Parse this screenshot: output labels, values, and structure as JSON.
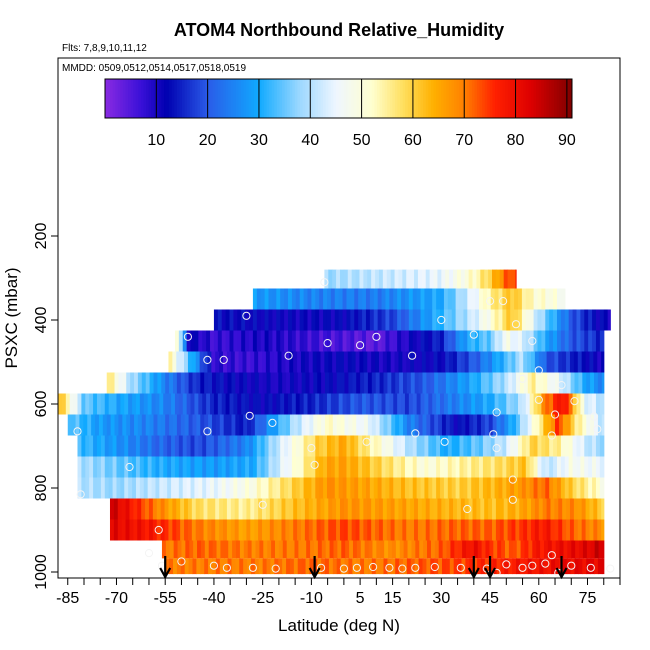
{
  "chart_data": {
    "type": "heatmap",
    "title": "ATOM4 Northbound Relative_Humidity",
    "flights_label": "Flts: 7,8,9,10,11,12",
    "dates_label": "MMDD: 0509,0512,0514,0517,0518,0519",
    "xlabel": "Latitude (deg N)",
    "ylabel": "PSXC (mbar)",
    "xlim": [
      -88,
      85
    ],
    "ylim": [
      1010,
      60
    ],
    "x_ticks_all": [
      -85,
      -80,
      -75,
      -70,
      -65,
      -60,
      -55,
      -50,
      -45,
      -40,
      -35,
      -30,
      -25,
      -20,
      -15,
      -10,
      -5,
      0,
      5,
      10,
      15,
      20,
      25,
      30,
      35,
      40,
      45,
      50,
      55,
      60,
      65,
      70,
      75,
      80,
      85
    ],
    "x_tick_labels": [
      "-85",
      "-70",
      "-55",
      "-40",
      "-25",
      "-10",
      "5",
      "15",
      "30",
      "45",
      "60",
      "75"
    ],
    "x_tick_label_values": [
      -85,
      -70,
      -55,
      -40,
      -25,
      -10,
      5,
      15,
      30,
      45,
      60,
      75
    ],
    "y_tick_labels": [
      "200",
      "400",
      "600",
      "800",
      "1000"
    ],
    "y_tick_values": [
      200,
      400,
      600,
      800,
      1000
    ],
    "colorbar": {
      "min": 0,
      "max": 91,
      "tick_labels": [
        "10",
        "20",
        "30",
        "40",
        "50",
        "60",
        "70",
        "80",
        "90"
      ],
      "tick_values": [
        10,
        20,
        30,
        40,
        50,
        60,
        70,
        80,
        90
      ],
      "stops": [
        {
          "v": 0,
          "c": "#8a2be2"
        },
        {
          "v": 7,
          "c": "#3a10d8"
        },
        {
          "v": 12,
          "c": "#0000b0"
        },
        {
          "v": 20,
          "c": "#2a5be8"
        },
        {
          "v": 30,
          "c": "#10aaff"
        },
        {
          "v": 38,
          "c": "#9dd8ff"
        },
        {
          "v": 45,
          "c": "#eef6ff"
        },
        {
          "v": 52,
          "c": "#ffffd0"
        },
        {
          "v": 58,
          "c": "#ffe060"
        },
        {
          "v": 64,
          "c": "#ffb000"
        },
        {
          "v": 70,
          "c": "#ff8000"
        },
        {
          "v": 76,
          "c": "#ff2000"
        },
        {
          "v": 83,
          "c": "#dd0000"
        },
        {
          "v": 91,
          "c": "#800000"
        }
      ]
    },
    "profile_latitudes": [
      -55,
      -9,
      40,
      45,
      67
    ],
    "layers": [
      {
        "p": 300,
        "x0": -6,
        "x1": 53,
        "v": [
          [
            -6,
            38
          ],
          [
            15,
            42
          ],
          [
            30,
            45
          ],
          [
            40,
            52
          ],
          [
            45,
            60
          ],
          [
            50,
            72
          ],
          [
            53,
            75
          ]
        ]
      },
      {
        "p": 350,
        "x0": -28,
        "x1": 68,
        "v": [
          [
            -28,
            28
          ],
          [
            -10,
            25
          ],
          [
            10,
            24
          ],
          [
            30,
            30
          ],
          [
            40,
            45
          ],
          [
            45,
            55
          ],
          [
            52,
            62
          ],
          [
            58,
            52
          ],
          [
            64,
            50
          ],
          [
            68,
            48
          ]
        ]
      },
      {
        "p": 400,
        "x0": -40,
        "x1": 82,
        "v": [
          [
            -40,
            13
          ],
          [
            -30,
            12
          ],
          [
            -15,
            11
          ],
          [
            0,
            12
          ],
          [
            15,
            18
          ],
          [
            28,
            30
          ],
          [
            38,
            40
          ],
          [
            45,
            50
          ],
          [
            52,
            62
          ],
          [
            60,
            40
          ],
          [
            70,
            20
          ],
          [
            78,
            12
          ],
          [
            82,
            11
          ]
        ]
      },
      {
        "p": 450,
        "x0": -52,
        "x1": 80,
        "v": [
          [
            -52,
            60
          ],
          [
            -48,
            12
          ],
          [
            -40,
            7
          ],
          [
            -25,
            10
          ],
          [
            -10,
            7
          ],
          [
            10,
            4
          ],
          [
            20,
            10
          ],
          [
            30,
            15
          ],
          [
            38,
            30
          ],
          [
            45,
            35
          ],
          [
            50,
            48
          ],
          [
            56,
            42
          ],
          [
            62,
            30
          ],
          [
            70,
            20
          ],
          [
            80,
            15
          ]
        ]
      },
      {
        "p": 500,
        "x0": -54,
        "x1": 80,
        "v": [
          [
            -54,
            55
          ],
          [
            -48,
            35
          ],
          [
            -40,
            8
          ],
          [
            -30,
            7
          ],
          [
            -15,
            10
          ],
          [
            0,
            12
          ],
          [
            15,
            10
          ],
          [
            30,
            12
          ],
          [
            40,
            20
          ],
          [
            48,
            30
          ],
          [
            55,
            40
          ],
          [
            62,
            20
          ],
          [
            70,
            15
          ],
          [
            80,
            10
          ]
        ]
      },
      {
        "p": 550,
        "x0": -73,
        "x1": 80,
        "v": [
          [
            -73,
            58
          ],
          [
            -66,
            40
          ],
          [
            -55,
            25
          ],
          [
            -45,
            15
          ],
          [
            -35,
            12
          ],
          [
            -20,
            10
          ],
          [
            -5,
            12
          ],
          [
            10,
            15
          ],
          [
            25,
            20
          ],
          [
            40,
            30
          ],
          [
            50,
            40
          ],
          [
            58,
            55
          ],
          [
            66,
            45
          ],
          [
            74,
            30
          ],
          [
            80,
            25
          ]
        ]
      },
      {
        "p": 600,
        "x0": -88,
        "x1": 80,
        "v": [
          [
            -88,
            65
          ],
          [
            -80,
            35
          ],
          [
            -70,
            30
          ],
          [
            -55,
            25
          ],
          [
            -40,
            15
          ],
          [
            -25,
            12
          ],
          [
            -10,
            15
          ],
          [
            5,
            20
          ],
          [
            20,
            18
          ],
          [
            35,
            25
          ],
          [
            45,
            30
          ],
          [
            55,
            40
          ],
          [
            62,
            70
          ],
          [
            68,
            80
          ],
          [
            74,
            45
          ],
          [
            80,
            40
          ]
        ]
      },
      {
        "p": 650,
        "x0": -85,
        "x1": 80,
        "v": [
          [
            -85,
            35
          ],
          [
            -75,
            28
          ],
          [
            -60,
            25
          ],
          [
            -45,
            20
          ],
          [
            -30,
            14
          ],
          [
            -15,
            40
          ],
          [
            -5,
            52
          ],
          [
            8,
            45
          ],
          [
            20,
            25
          ],
          [
            35,
            12
          ],
          [
            45,
            18
          ],
          [
            52,
            30
          ],
          [
            58,
            48
          ],
          [
            66,
            75
          ],
          [
            72,
            55
          ],
          [
            80,
            40
          ]
        ]
      },
      {
        "p": 700,
        "x0": -82,
        "x1": 80,
        "v": [
          [
            -82,
            33
          ],
          [
            -72,
            28
          ],
          [
            -58,
            22
          ],
          [
            -45,
            18
          ],
          [
            -30,
            25
          ],
          [
            -18,
            45
          ],
          [
            -8,
            60
          ],
          [
            0,
            65
          ],
          [
            8,
            55
          ],
          [
            20,
            40
          ],
          [
            32,
            30
          ],
          [
            42,
            35
          ],
          [
            50,
            42
          ],
          [
            58,
            60
          ],
          [
            66,
            55
          ],
          [
            74,
            42
          ],
          [
            80,
            38
          ]
        ]
      },
      {
        "p": 750,
        "x0": -82,
        "x1": 80,
        "v": [
          [
            -82,
            40
          ],
          [
            -70,
            35
          ],
          [
            -55,
            30
          ],
          [
            -40,
            28
          ],
          [
            -28,
            30
          ],
          [
            -15,
            50
          ],
          [
            -6,
            65
          ],
          [
            0,
            66
          ],
          [
            10,
            60
          ],
          [
            25,
            50
          ],
          [
            38,
            55
          ],
          [
            48,
            58
          ],
          [
            56,
            62
          ],
          [
            62,
            40
          ],
          [
            70,
            48
          ],
          [
            80,
            45
          ]
        ]
      },
      {
        "p": 800,
        "x0": -82,
        "x1": 80,
        "v": [
          [
            -82,
            40
          ],
          [
            -70,
            38
          ],
          [
            -55,
            42
          ],
          [
            -40,
            45
          ],
          [
            -28,
            50
          ],
          [
            -15,
            60
          ],
          [
            -5,
            68
          ],
          [
            5,
            66
          ],
          [
            20,
            62
          ],
          [
            35,
            60
          ],
          [
            48,
            64
          ],
          [
            56,
            68
          ],
          [
            62,
            72
          ],
          [
            70,
            60
          ],
          [
            80,
            50
          ]
        ]
      },
      {
        "p": 850,
        "x0": -72,
        "x1": 80,
        "v": [
          [
            -72,
            85
          ],
          [
            -60,
            72
          ],
          [
            -45,
            58
          ],
          [
            -30,
            55
          ],
          [
            -15,
            62
          ],
          [
            0,
            68
          ],
          [
            15,
            66
          ],
          [
            30,
            64
          ],
          [
            45,
            62
          ],
          [
            55,
            65
          ],
          [
            62,
            70
          ],
          [
            72,
            68
          ],
          [
            80,
            60
          ]
        ]
      },
      {
        "p": 900,
        "x0": -72,
        "x1": 80,
        "v": [
          [
            -72,
            82
          ],
          [
            -60,
            78
          ],
          [
            -45,
            70
          ],
          [
            -30,
            66
          ],
          [
            -15,
            70
          ],
          [
            0,
            74
          ],
          [
            20,
            70
          ],
          [
            35,
            72
          ],
          [
            45,
            72
          ],
          [
            55,
            75
          ],
          [
            62,
            78
          ],
          [
            70,
            72
          ],
          [
            80,
            68
          ]
        ]
      },
      {
        "p": 950,
        "x0": -56,
        "x1": 80,
        "v": [
          [
            -56,
            70
          ],
          [
            -45,
            72
          ],
          [
            -30,
            70
          ],
          [
            -15,
            70
          ],
          [
            0,
            72
          ],
          [
            15,
            68
          ],
          [
            30,
            72
          ],
          [
            40,
            80
          ],
          [
            45,
            75
          ],
          [
            52,
            72
          ],
          [
            60,
            78
          ],
          [
            68,
            80
          ],
          [
            75,
            82
          ],
          [
            80,
            85
          ]
        ]
      },
      {
        "p": 985,
        "x0": -55,
        "x1": 80,
        "v": [
          [
            -55,
            70
          ],
          [
            -40,
            70
          ],
          [
            -25,
            70
          ],
          [
            -10,
            72
          ],
          [
            5,
            70
          ],
          [
            20,
            72
          ],
          [
            35,
            74
          ],
          [
            45,
            76
          ],
          [
            55,
            78
          ],
          [
            65,
            80
          ],
          [
            80,
            82
          ]
        ]
      }
    ],
    "points": [
      [
        -6,
        310
      ],
      [
        45,
        355
      ],
      [
        49,
        355
      ],
      [
        -30,
        390
      ],
      [
        30,
        400
      ],
      [
        53,
        410
      ],
      [
        -48,
        440
      ],
      [
        -5,
        455
      ],
      [
        5,
        460
      ],
      [
        10,
        440
      ],
      [
        40,
        435
      ],
      [
        58,
        450
      ],
      [
        -42,
        495
      ],
      [
        -17,
        485
      ],
      [
        21,
        485
      ],
      [
        -37,
        495
      ],
      [
        60,
        520
      ],
      [
        67,
        555
      ],
      [
        55,
        540
      ],
      [
        -29,
        628
      ],
      [
        -22,
        645
      ],
      [
        47,
        620
      ],
      [
        65,
        625
      ],
      [
        77,
        630
      ],
      [
        60,
        590
      ],
      [
        71,
        593
      ],
      [
        -42,
        665
      ],
      [
        -82,
        665
      ],
      [
        -10,
        705
      ],
      [
        7,
        690
      ],
      [
        46,
        672
      ],
      [
        64,
        675
      ],
      [
        78,
        660
      ],
      [
        22,
        670
      ],
      [
        31,
        690
      ],
      [
        47,
        705
      ],
      [
        -66,
        750
      ],
      [
        -9,
        745
      ],
      [
        52,
        780
      ],
      [
        -81,
        815
      ],
      [
        -25,
        840
      ],
      [
        38,
        850
      ],
      [
        52,
        828
      ],
      [
        -57,
        900
      ],
      [
        -60,
        955
      ],
      [
        -56,
        985
      ],
      [
        -50,
        975
      ],
      [
        -40,
        985
      ],
      [
        -36,
        990
      ],
      [
        -28,
        990
      ],
      [
        -21,
        992
      ],
      [
        -7,
        990
      ],
      [
        0,
        992
      ],
      [
        4,
        990
      ],
      [
        9,
        988
      ],
      [
        14,
        990
      ],
      [
        18,
        992
      ],
      [
        22,
        990
      ],
      [
        28,
        988
      ],
      [
        36,
        990
      ],
      [
        44,
        992
      ],
      [
        47,
        1002
      ],
      [
        50,
        982
      ],
      [
        55,
        990
      ],
      [
        58,
        985
      ],
      [
        62,
        980
      ],
      [
        64,
        960
      ],
      [
        66,
        1002
      ],
      [
        70,
        985
      ],
      [
        76,
        990
      ],
      [
        82,
        992
      ]
    ]
  }
}
